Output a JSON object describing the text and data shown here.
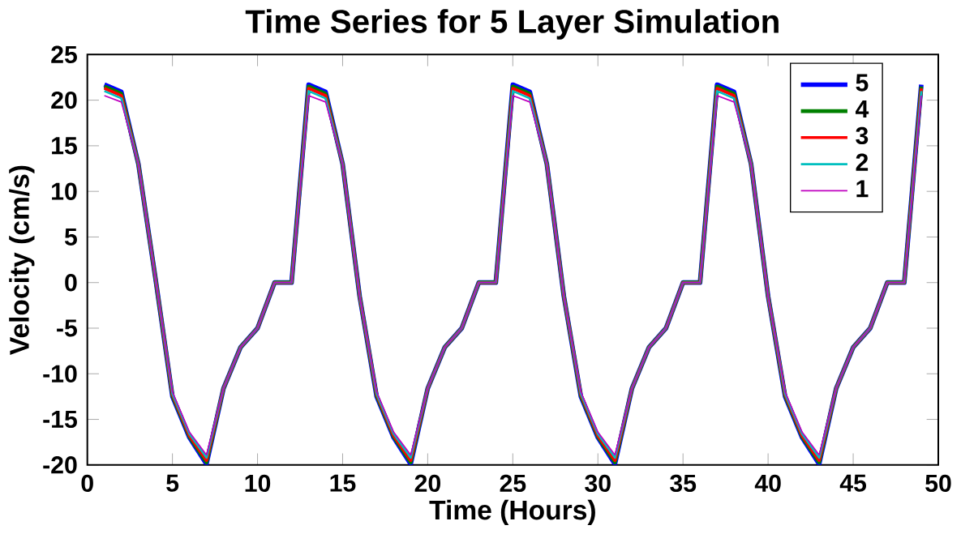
{
  "chart_data": {
    "type": "line",
    "title": "Time Series for 5 Layer Simulation",
    "xlabel": "Time (Hours)",
    "ylabel": "Velocity (cm/s)",
    "x": [
      1,
      2,
      3,
      4,
      5,
      6,
      7,
      8,
      9,
      10,
      11,
      12,
      13,
      14,
      15,
      16,
      17,
      18,
      19,
      20,
      21,
      22,
      23,
      24,
      25,
      26,
      27,
      28,
      29,
      30,
      31,
      32,
      33,
      34,
      35,
      36,
      37,
      38,
      39,
      40,
      41,
      42,
      43,
      44,
      45,
      46,
      47,
      48,
      49
    ],
    "series": [
      {
        "name": "5",
        "color": "#0000ff",
        "values": [
          21.7,
          20.9,
          13.0,
          0.5,
          -12.5,
          -17.0,
          -19.9,
          -11.6,
          -7.1,
          -5.0,
          0,
          0,
          21.7,
          20.9,
          13.0,
          -1.5,
          -12.5,
          -17.0,
          -19.9,
          -11.6,
          -7.1,
          -5.0,
          0,
          0,
          21.7,
          20.9,
          13.0,
          -1.5,
          -12.5,
          -17.0,
          -19.9,
          -11.6,
          -7.1,
          -5.0,
          0,
          0,
          21.7,
          20.9,
          13.0,
          -1.5,
          -12.5,
          -17.0,
          -19.9,
          -11.6,
          -7.1,
          -5.0,
          0,
          0,
          21.7
        ]
      },
      {
        "name": "4",
        "color": "#008000",
        "values": [
          21.5,
          20.7,
          13.0,
          0.5,
          -12.4,
          -16.9,
          -19.7,
          -11.6,
          -7.1,
          -5.0,
          0,
          0,
          21.5,
          20.7,
          13.0,
          -1.5,
          -12.4,
          -16.9,
          -19.7,
          -11.6,
          -7.1,
          -5.0,
          0,
          0,
          21.5,
          20.7,
          13.0,
          -1.5,
          -12.4,
          -16.9,
          -19.7,
          -11.6,
          -7.1,
          -5.0,
          0,
          0,
          21.5,
          20.7,
          13.0,
          -1.5,
          -12.4,
          -16.9,
          -19.7,
          -11.6,
          -7.1,
          -5.0,
          0,
          0,
          21.5
        ]
      },
      {
        "name": "3",
        "color": "#ff0000",
        "values": [
          21.3,
          20.5,
          13.0,
          0.5,
          -12.3,
          -16.8,
          -19.5,
          -11.6,
          -7.1,
          -5.0,
          0,
          0,
          21.3,
          20.5,
          13.0,
          -1.5,
          -12.3,
          -16.8,
          -19.5,
          -11.6,
          -7.1,
          -5.0,
          0,
          0,
          21.3,
          20.5,
          13.0,
          -1.5,
          -12.3,
          -16.8,
          -19.5,
          -11.6,
          -7.1,
          -5.0,
          0,
          0,
          21.3,
          20.5,
          13.0,
          -1.5,
          -12.3,
          -16.8,
          -19.5,
          -11.6,
          -7.1,
          -5.0,
          0,
          0,
          21.3
        ]
      },
      {
        "name": "2",
        "color": "#00bfbf",
        "values": [
          21.0,
          20.2,
          13.0,
          0.5,
          -12.2,
          -16.6,
          -19.2,
          -11.6,
          -7.1,
          -5.0,
          0,
          0,
          21.0,
          20.2,
          13.0,
          -1.5,
          -12.2,
          -16.6,
          -19.2,
          -11.6,
          -7.1,
          -5.0,
          0,
          0,
          21.0,
          20.2,
          13.0,
          -1.5,
          -12.2,
          -16.6,
          -19.2,
          -11.6,
          -7.1,
          -5.0,
          0,
          0,
          21.0,
          20.2,
          13.0,
          -1.5,
          -12.2,
          -16.6,
          -19.2,
          -11.6,
          -7.1,
          -5.0,
          0,
          0,
          21.0
        ]
      },
      {
        "name": "1",
        "color": "#bf00bf",
        "values": [
          20.5,
          19.8,
          13.0,
          0.5,
          -12.0,
          -16.4,
          -18.9,
          -11.6,
          -7.1,
          -5.0,
          0,
          0,
          20.5,
          19.8,
          13.0,
          -1.5,
          -12.0,
          -16.4,
          -18.9,
          -11.6,
          -7.1,
          -5.0,
          0,
          0,
          20.5,
          19.8,
          13.0,
          -1.5,
          -12.0,
          -16.4,
          -18.9,
          -11.6,
          -7.1,
          -5.0,
          0,
          0,
          20.5,
          19.8,
          13.0,
          -1.5,
          -12.0,
          -16.4,
          -18.9,
          -11.6,
          -7.1,
          -5.0,
          0,
          0,
          20.5
        ]
      }
    ],
    "xlim": [
      0,
      50
    ],
    "xticks": [
      0,
      5,
      10,
      15,
      20,
      25,
      30,
      35,
      40,
      45,
      50
    ],
    "ylim": [
      -20,
      25
    ],
    "yticks": [
      -20,
      -15,
      -10,
      -5,
      0,
      5,
      10,
      15,
      20,
      25
    ],
    "grid": false,
    "legend": "top right",
    "marker": "none",
    "line_style": "solid"
  }
}
